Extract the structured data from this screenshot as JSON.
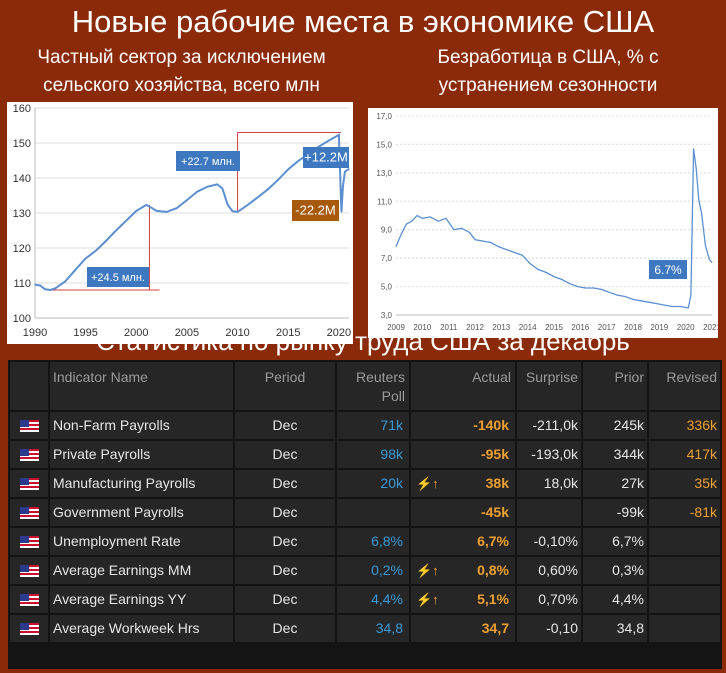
{
  "page": {
    "title": "Новые рабочие места в экономике США"
  },
  "left_panel": {
    "caption_line1": "Частный сектор за исключением",
    "caption_line2": "сельского хозяйства, всего млн"
  },
  "right_panel": {
    "caption_line1": "Безработица в США, % с",
    "caption_line2": "устранением сезонности"
  },
  "chart_data": [
    {
      "type": "line",
      "title": "Частный сектор за исключением сельского хозяйства, всего млн",
      "xlim": [
        1990,
        2021
      ],
      "ylim": [
        100,
        160
      ],
      "xticks": [
        "1990",
        "1995",
        "2000",
        "2005",
        "2010",
        "2015",
        "2020"
      ],
      "yticks": [
        "100",
        "110",
        "120",
        "130",
        "140",
        "150",
        "160"
      ],
      "x": [
        1990,
        1990.5,
        1991,
        1991.5,
        1992,
        1993,
        1994,
        1995,
        1996,
        1997,
        1998,
        1999,
        2000,
        2001,
        2001.5,
        2002,
        2003,
        2004,
        2005,
        2006,
        2007,
        2008,
        2008.5,
        2009,
        2009.5,
        2010,
        2011,
        2012,
        2013,
        2014,
        2015,
        2016,
        2017,
        2018,
        2019,
        2020,
        2020.25,
        2020.4,
        2020.6,
        2021
      ],
      "values": [
        109.5,
        109.3,
        108.2,
        108.0,
        108.5,
        110.5,
        113.8,
        117.0,
        119.2,
        122.0,
        125.0,
        127.8,
        130.6,
        132.3,
        131.5,
        130.6,
        130.3,
        131.4,
        133.7,
        136.1,
        137.5,
        138.2,
        137.0,
        132.5,
        130.5,
        130.3,
        132.3,
        134.5,
        136.8,
        139.5,
        142.5,
        144.9,
        146.8,
        148.9,
        150.7,
        152.3,
        130.3,
        137.5,
        141.8,
        142.6
      ],
      "color": "#5b8fd0",
      "annotations": [
        {
          "text": "+24.5 млн.",
          "color": "#3e78c0"
        },
        {
          "text": "+22.7 млн.",
          "color": "#3e78c0"
        },
        {
          "text": "+12.2M",
          "color": "#3e78c0"
        },
        {
          "text": "-22.2M",
          "color": "#a85a0c"
        }
      ],
      "grid": true
    },
    {
      "type": "line",
      "title": "Безработица в США, % с устранением сезонности",
      "xlim": [
        2009,
        2021
      ],
      "ylim": [
        3.0,
        17.0
      ],
      "xticks": [
        "2009",
        "2010",
        "2011",
        "2012",
        "2013",
        "2014",
        "2015",
        "2016",
        "2017",
        "2018",
        "2019",
        "2020",
        "2021"
      ],
      "yticks": [
        "3,0",
        "5,0",
        "7,0",
        "9,0",
        "11,0",
        "13,0",
        "15,0",
        "17,0"
      ],
      "x": [
        2009.0,
        2009.2,
        2009.4,
        2009.6,
        2009.8,
        2010.0,
        2010.3,
        2010.6,
        2010.9,
        2011.2,
        2011.5,
        2011.8,
        2012.0,
        2012.3,
        2012.6,
        2012.9,
        2013.2,
        2013.5,
        2013.8,
        2014.1,
        2014.4,
        2014.7,
        2015.0,
        2015.3,
        2015.6,
        2015.9,
        2016.2,
        2016.5,
        2016.8,
        2017.1,
        2017.4,
        2017.7,
        2018.0,
        2018.3,
        2018.6,
        2018.9,
        2019.2,
        2019.5,
        2019.8,
        2020.1,
        2020.2,
        2020.3,
        2020.4,
        2020.5,
        2020.6,
        2020.75,
        2020.9,
        2021.0
      ],
      "values": [
        7.8,
        8.7,
        9.4,
        9.6,
        10.0,
        9.8,
        9.9,
        9.6,
        9.8,
        9.0,
        9.1,
        8.8,
        8.3,
        8.2,
        8.1,
        7.8,
        7.6,
        7.4,
        7.2,
        6.6,
        6.2,
        6.0,
        5.7,
        5.5,
        5.2,
        5.0,
        4.9,
        4.9,
        4.8,
        4.6,
        4.4,
        4.3,
        4.1,
        4.0,
        3.9,
        3.8,
        3.7,
        3.6,
        3.6,
        3.5,
        4.4,
        14.7,
        13.3,
        11.1,
        10.2,
        7.9,
        6.9,
        6.7
      ],
      "color": "#5b8fd0",
      "annotations": [
        {
          "text": "6.7%",
          "color": "#3e78c0"
        }
      ],
      "grid": true
    }
  ],
  "section": {
    "title": "Статистика по рынку труда США за декабрь"
  },
  "table": {
    "headers": {
      "indicator": "Indicator Name",
      "period": "Period",
      "poll_line1": "Reuters",
      "poll_line2": "Poll",
      "actual": "Actual",
      "surprise": "Surprise",
      "prior": "Prior",
      "revised": "Revised"
    },
    "rows": [
      {
        "indicator": "Non-Farm Payrolls",
        "period": "Dec",
        "poll": "71k",
        "spark": "",
        "actual": "-140k",
        "surprise": "-211,0k",
        "prior": "245k",
        "revised": "336k"
      },
      {
        "indicator": "Private Payrolls",
        "period": "Dec",
        "poll": "98k",
        "spark": "",
        "actual": "-95k",
        "surprise": "-193,0k",
        "prior": "344k",
        "revised": "417k"
      },
      {
        "indicator": "Manufacturing Payrolls",
        "period": "Dec",
        "poll": "20k",
        "spark": "⚡↑",
        "actual": "38k",
        "surprise": "18,0k",
        "prior": "27k",
        "revised": "35k"
      },
      {
        "indicator": "Government Payrolls",
        "period": "Dec",
        "poll": "",
        "spark": "",
        "actual": "-45k",
        "surprise": "",
        "prior": "-99k",
        "revised": "-81k"
      },
      {
        "indicator": "Unemployment Rate",
        "period": "Dec",
        "poll": "6,8%",
        "spark": "",
        "actual": "6,7%",
        "surprise": "-0,10%",
        "prior": "6,7%",
        "revised": ""
      },
      {
        "indicator": "Average Earnings MM",
        "period": "Dec",
        "poll": "0,2%",
        "spark": "⚡↑",
        "actual": "0,8%",
        "surprise": "0,60%",
        "prior": "0,3%",
        "revised": ""
      },
      {
        "indicator": "Average Earnings YY",
        "period": "Dec",
        "poll": "4,4%",
        "spark": "⚡↑",
        "actual": "5,1%",
        "surprise": "0,70%",
        "prior": "4,4%",
        "revised": ""
      },
      {
        "indicator": "Average Workweek Hrs",
        "period": "Dec",
        "poll": "34,8",
        "spark": "",
        "actual": "34,7",
        "surprise": "-0,10",
        "prior": "34,8",
        "revised": ""
      }
    ]
  },
  "flag_icon": "us-flag-icon",
  "spark_icon": "lightning-up-arrow-icon"
}
